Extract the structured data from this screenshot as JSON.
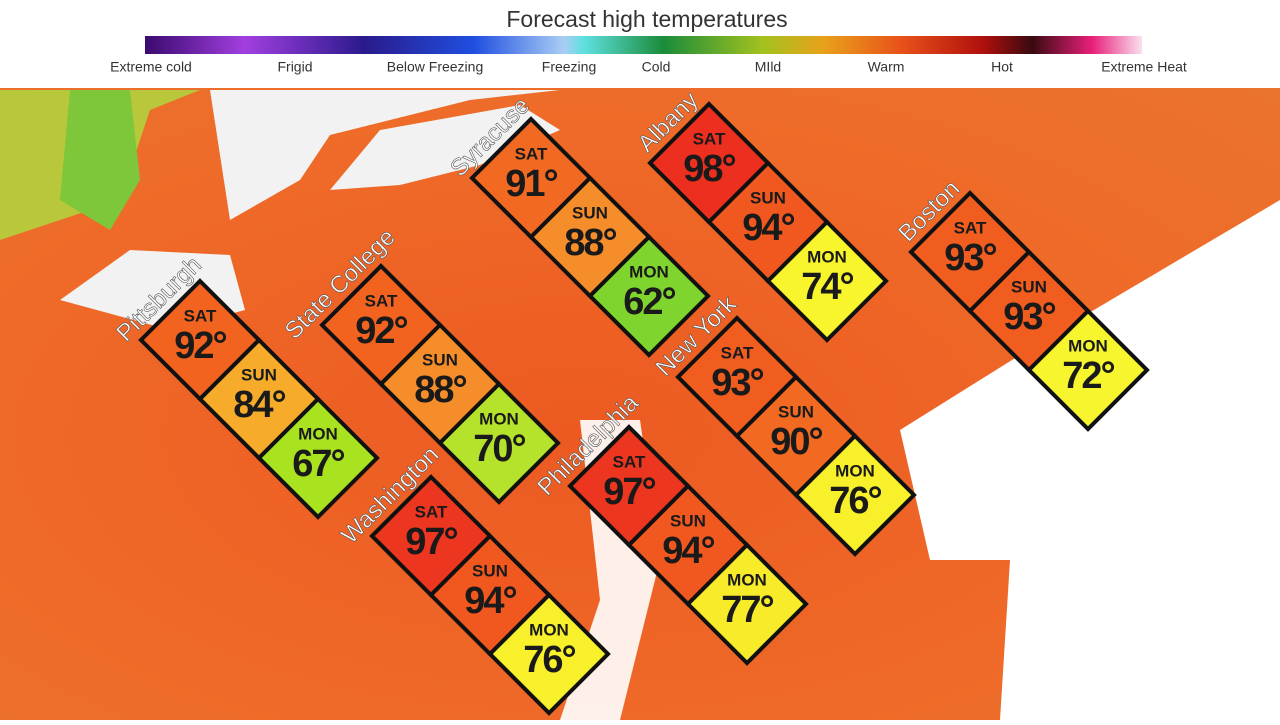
{
  "title": "Forecast high temperatures",
  "legend": {
    "labels": [
      "Extreme cold",
      "Frigid",
      "Below Freezing",
      "Freezing",
      "Cold",
      "MIld",
      "Warm",
      "Hot",
      "Extreme Heat"
    ]
  },
  "cities": [
    {
      "name": "Pittsburgh",
      "days": [
        {
          "day": "SAT",
          "temp": "92°",
          "color": "#f1631f"
        },
        {
          "day": "SUN",
          "temp": "84°",
          "color": "#f6ac2a"
        },
        {
          "day": "MON",
          "temp": "67°",
          "color": "#a9e21e"
        }
      ]
    },
    {
      "name": "State College",
      "days": [
        {
          "day": "SAT",
          "temp": "92°",
          "color": "#f1631f"
        },
        {
          "day": "SUN",
          "temp": "88°",
          "color": "#f48d2a"
        },
        {
          "day": "MON",
          "temp": "70°",
          "color": "#b5e22a"
        }
      ]
    },
    {
      "name": "Syracuse",
      "days": [
        {
          "day": "SAT",
          "temp": "91°",
          "color": "#f26a22"
        },
        {
          "day": "SUN",
          "temp": "88°",
          "color": "#f48d2a"
        },
        {
          "day": "MON",
          "temp": "62°",
          "color": "#7fd52d"
        }
      ]
    },
    {
      "name": "Albany",
      "days": [
        {
          "day": "SAT",
          "temp": "98°",
          "color": "#ec2f1f"
        },
        {
          "day": "SUN",
          "temp": "94°",
          "color": "#f1581f"
        },
        {
          "day": "MON",
          "temp": "74°",
          "color": "#f8f52c"
        }
      ]
    },
    {
      "name": "Boston",
      "days": [
        {
          "day": "SAT",
          "temp": "93°",
          "color": "#f15c1f"
        },
        {
          "day": "SUN",
          "temp": "93°",
          "color": "#f15c1f"
        },
        {
          "day": "MON",
          "temp": "72°",
          "color": "#f6f52e"
        }
      ]
    },
    {
      "name": "New York",
      "days": [
        {
          "day": "SAT",
          "temp": "93°",
          "color": "#f15c1f"
        },
        {
          "day": "SUN",
          "temp": "90°",
          "color": "#f26a22"
        },
        {
          "day": "MON",
          "temp": "76°",
          "color": "#f8f02a"
        }
      ]
    },
    {
      "name": "Philadelphia",
      "days": [
        {
          "day": "SAT",
          "temp": "97°",
          "color": "#ed361f"
        },
        {
          "day": "SUN",
          "temp": "94°",
          "color": "#f1581f"
        },
        {
          "day": "MON",
          "temp": "77°",
          "color": "#f8ec2a"
        }
      ]
    },
    {
      "name": "Washington",
      "days": [
        {
          "day": "SAT",
          "temp": "97°",
          "color": "#ed361f"
        },
        {
          "day": "SUN",
          "temp": "94°",
          "color": "#f1581f"
        },
        {
          "day": "MON",
          "temp": "76°",
          "color": "#f8f02a"
        }
      ]
    }
  ]
}
